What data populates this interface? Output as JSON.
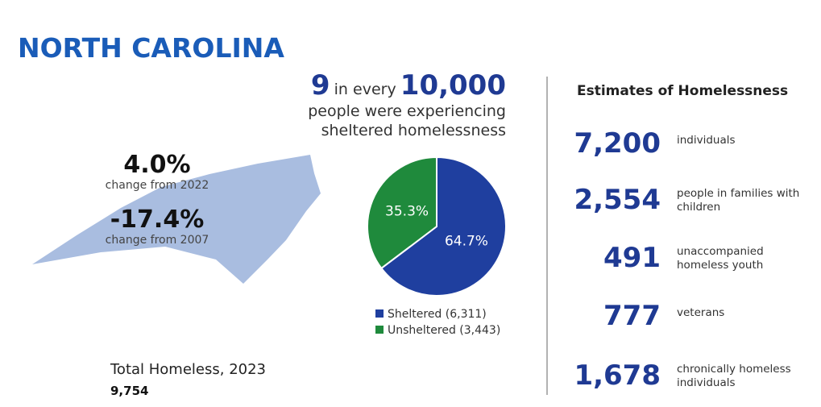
{
  "header": {
    "title": "NORTH CAROLINA"
  },
  "map": {
    "stats": [
      {
        "value": "4.0%",
        "label": "change from 2022"
      },
      {
        "value": "-17.4%",
        "label": "change from 2007"
      }
    ]
  },
  "total": {
    "label": "Total Homeless, 2023",
    "value": "9,754"
  },
  "rate": {
    "number": "9",
    "middle": "in every",
    "base": "10,000",
    "line1": "people were experiencing",
    "line2": "sheltered homelessness"
  },
  "chart_data": {
    "type": "pie",
    "categories": [
      "Sheltered (6,311)",
      "Unsheltered (3,443)"
    ],
    "values": [
      64.7,
      35.3
    ],
    "value_labels": [
      "64.7%",
      "35.3%"
    ],
    "colors": [
      "#1f3f9f",
      "#1f8a3c"
    ]
  },
  "estimates": {
    "title": "Estimates of Homelessness",
    "items": [
      {
        "value": "7,200",
        "label": "individuals"
      },
      {
        "value": "2,554",
        "label": "people in families with children"
      },
      {
        "value": "491",
        "label": "unaccompanied homeless youth"
      },
      {
        "value": "777",
        "label": "veterans"
      },
      {
        "value": "1,678",
        "label": "chronically homeless individuals"
      }
    ]
  }
}
